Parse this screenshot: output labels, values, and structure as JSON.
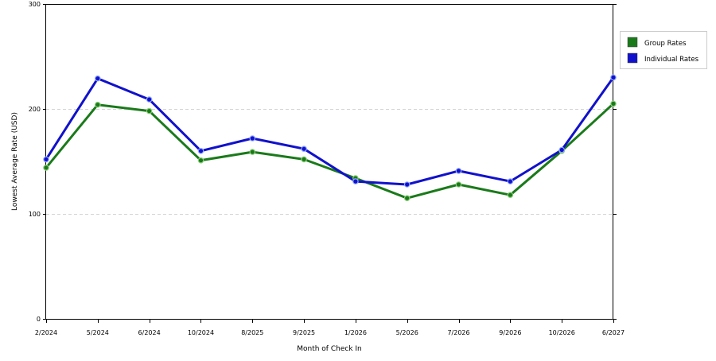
{
  "chart_data": {
    "type": "line",
    "xlabel": "Month of Check In",
    "ylabel": "Lowest Average Rate (USD)",
    "ylim": [
      0,
      300
    ],
    "yticks": [
      0,
      100,
      200,
      300
    ],
    "grid": "horizontal-dashed",
    "legend_position": "right",
    "categories": [
      "2/2024",
      "5/2024",
      "6/2024",
      "10/2024",
      "8/2025",
      "9/2025",
      "1/2026",
      "5/2026",
      "7/2026",
      "9/2026",
      "10/2026",
      "6/2027"
    ],
    "series": [
      {
        "name": "Group Rates",
        "color": "#1a7a1a",
        "values": [
          144,
          204,
          198,
          151,
          159,
          152,
          134,
          115,
          128,
          118,
          160,
          205
        ]
      },
      {
        "name": "Individual Rates",
        "color": "#1111cc",
        "values": [
          152,
          229,
          209,
          160,
          172,
          162,
          131,
          128,
          141,
          131,
          161,
          230
        ]
      }
    ]
  }
}
